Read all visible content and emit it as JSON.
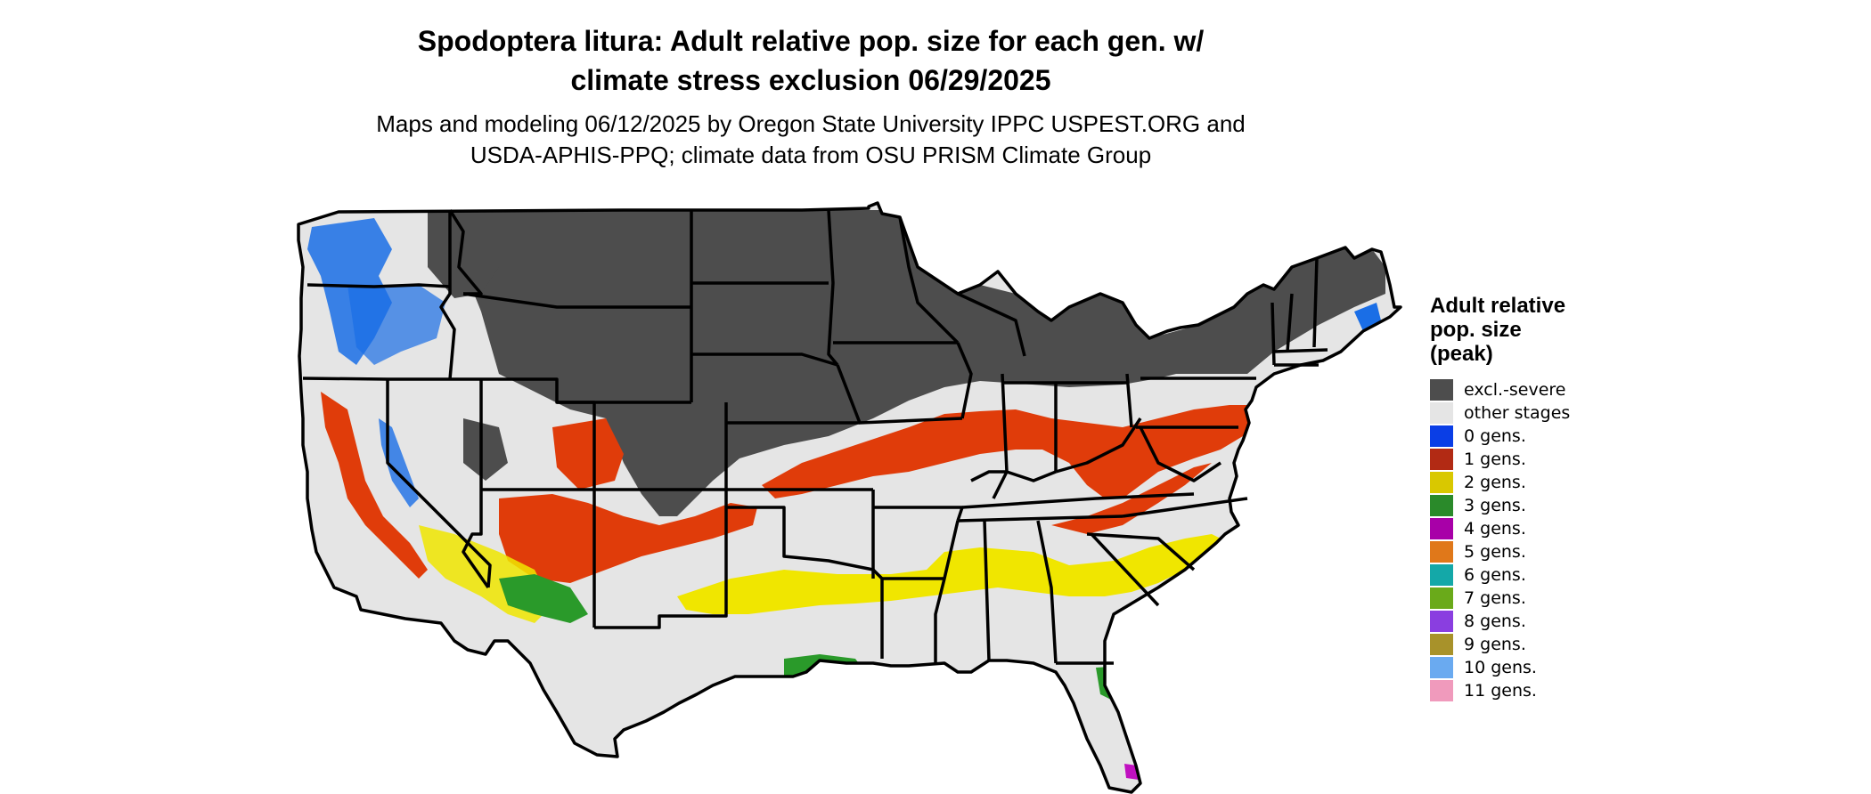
{
  "title_line1": "Spodoptera litura: Adult relative pop. size for each gen. w/",
  "title_line2": "climate stress exclusion 06/29/2025",
  "subtitle_line1": "Maps and modeling 06/12/2025 by Oregon State University IPPC USPEST.ORG and",
  "subtitle_line2": "USDA-APHIS-PPQ; climate data from OSU PRISM Climate Group",
  "legend": {
    "title_line1": "Adult relative",
    "title_line2": "pop. size",
    "title_line3": "(peak)",
    "items": [
      {
        "label": "excl.-severe",
        "color": "#4d4d4d"
      },
      {
        "label": "other stages",
        "color": "#e5e5e5"
      },
      {
        "label": "0 gens.",
        "color": "#0a3ee6"
      },
      {
        "label": "1 gens.",
        "color": "#b22a14"
      },
      {
        "label": "2 gens.",
        "color": "#d9c800"
      },
      {
        "label": "3 gens.",
        "color": "#2a8a2a"
      },
      {
        "label": "4 gens.",
        "color": "#a800a8"
      },
      {
        "label": "5 gens.",
        "color": "#e0781a"
      },
      {
        "label": "6 gens.",
        "color": "#14a8a8"
      },
      {
        "label": "7 gens.",
        "color": "#6aaa1a"
      },
      {
        "label": "8 gens.",
        "color": "#8a3ee0"
      },
      {
        "label": "9 gens.",
        "color": "#a8922a"
      },
      {
        "label": "10 gens.",
        "color": "#6aaaf0"
      },
      {
        "label": "11 gens.",
        "color": "#f09abc"
      }
    ]
  },
  "map_colors": {
    "land": "#e5e5e5",
    "excluded": "#4d4d4d",
    "border": "#000000",
    "zone_0": "#1a6ee6",
    "zone_1": "#e03c0a",
    "zone_2": "#f0e600",
    "zone_3": "#2a9a2a",
    "zone_4": "#c010c0"
  }
}
